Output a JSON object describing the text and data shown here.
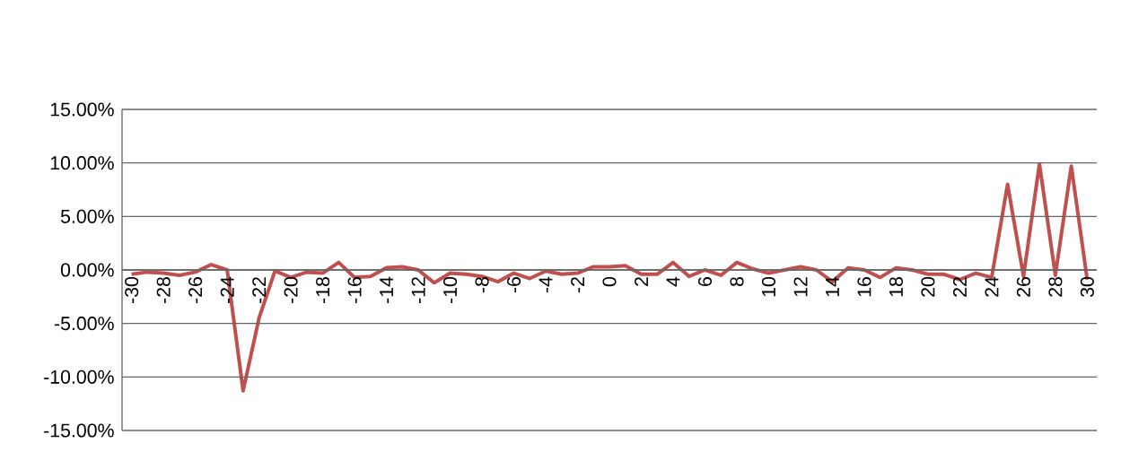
{
  "chart_data": {
    "type": "line",
    "x": [
      -30,
      -29,
      -28,
      -27,
      -26,
      -25,
      -24,
      -23,
      -22,
      -21,
      -20,
      -19,
      -18,
      -17,
      -16,
      -15,
      -14,
      -13,
      -12,
      -11,
      -10,
      -9,
      -8,
      -7,
      -6,
      -5,
      -4,
      -3,
      -2,
      -1,
      0,
      1,
      2,
      3,
      4,
      5,
      6,
      7,
      8,
      9,
      10,
      11,
      12,
      13,
      14,
      15,
      16,
      17,
      18,
      19,
      20,
      21,
      22,
      23,
      24,
      25,
      26,
      27,
      28,
      29,
      30
    ],
    "series": [
      {
        "color": "#c0504d",
        "values": [
          -0.4,
          -0.2,
          -0.3,
          -0.5,
          -0.2,
          0.5,
          0.0,
          -11.3,
          -4.5,
          -0.1,
          -0.7,
          -0.2,
          -0.3,
          0.7,
          -0.7,
          -0.6,
          0.2,
          0.3,
          0.0,
          -1.2,
          -0.3,
          -0.4,
          -0.6,
          -1.1,
          -0.3,
          -0.8,
          -0.1,
          -0.4,
          -0.3,
          0.3,
          0.3,
          0.4,
          -0.4,
          -0.4,
          0.7,
          -0.6,
          0.0,
          -0.5,
          0.7,
          0.1,
          -0.3,
          0.0,
          0.3,
          0.0,
          -1.1,
          0.2,
          0.0,
          -0.7,
          0.2,
          0.0,
          -0.4,
          -0.4,
          -0.9,
          -0.3,
          -0.7,
          8.0,
          -0.6,
          9.9,
          -0.5,
          9.7,
          -0.9
        ]
      }
    ],
    "xlim": [
      -30.6,
      30.6
    ],
    "xticks": [
      -30,
      -28,
      -26,
      -24,
      -22,
      -20,
      -18,
      -16,
      -14,
      -12,
      -10,
      -8,
      -6,
      -4,
      -2,
      0,
      2,
      4,
      6,
      8,
      10,
      12,
      14,
      16,
      18,
      20,
      22,
      24,
      26,
      28,
      30
    ],
    "ylim": [
      -15,
      15
    ],
    "yticks": [
      {
        "value": -15,
        "label": "-15.00%"
      },
      {
        "value": -10,
        "label": "-10.00%"
      },
      {
        "value": -5,
        "label": "-5.00%"
      },
      {
        "value": 0,
        "label": "0.00%"
      },
      {
        "value": 5,
        "label": "5.00%"
      },
      {
        "value": 10,
        "label": "10.00%"
      },
      {
        "value": 15,
        "label": "15.00%"
      }
    ],
    "grid": "y",
    "marker": "none",
    "line_style": "solid"
  }
}
